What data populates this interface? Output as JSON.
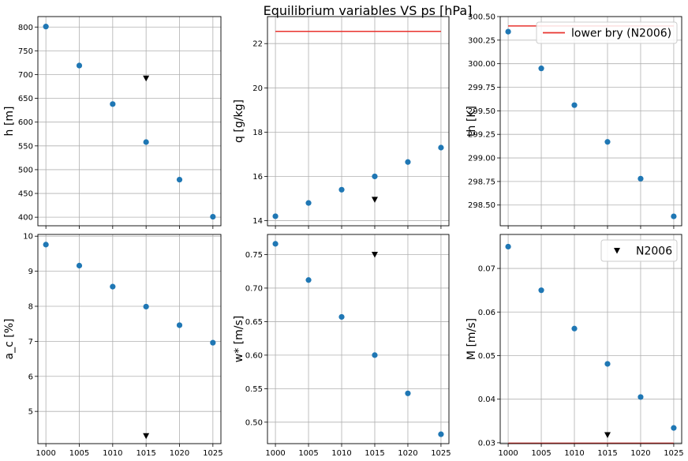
{
  "figure": {
    "title": "Equilibrium variables VS ps [hPa]",
    "colors": {
      "points": "#1f77b4",
      "reference": "#000000",
      "line": "#e8332e",
      "grid": "#b0b0b0"
    }
  },
  "chart_data": [
    {
      "type": "scatter",
      "ylabel": "h [m]",
      "x": [
        1000,
        1005,
        1010,
        1015,
        1020,
        1025
      ],
      "xlim": [
        998.8,
        1026.2
      ],
      "xticks": [
        "",
        "",
        "",
        "",
        "",
        ""
      ],
      "ylim": [
        382,
        822
      ],
      "yticks": [
        "400",
        "450",
        "500",
        "550",
        "600",
        "650",
        "700",
        "750",
        "800"
      ],
      "series": [
        {
          "values": [
            801,
            719,
            638,
            558,
            479,
            401
          ]
        }
      ],
      "reference": {
        "x": 1015,
        "y": 692
      }
    },
    {
      "type": "scatter",
      "ylabel": "q [g/kg]",
      "x": [
        1000,
        1005,
        1010,
        1015,
        1020,
        1025
      ],
      "xlim": [
        998.8,
        1026.2
      ],
      "xticks": [
        "",
        "",
        "",
        "",
        "",
        ""
      ],
      "ylim": [
        13.77,
        23.22
      ],
      "yticks": [
        "14",
        "16",
        "18",
        "20",
        "22"
      ],
      "series": [
        {
          "values": [
            14.2,
            14.8,
            15.4,
            16.0,
            16.65,
            17.3
          ]
        }
      ],
      "reference": {
        "x": 1015,
        "y": 14.95
      },
      "hline": {
        "y": 22.55,
        "x_from": 1000,
        "x_to": 1025
      }
    },
    {
      "type": "scatter",
      "ylabel": "th [K]",
      "x": [
        1000,
        1005,
        1010,
        1015,
        1020,
        1025
      ],
      "xlim": [
        998.8,
        1026.2
      ],
      "xticks": [
        "",
        "",
        "",
        "",
        "",
        ""
      ],
      "ylim": [
        298.28,
        300.5
      ],
      "yticks": [
        "298.50",
        "298.75",
        "299.00",
        "299.25",
        "299.50",
        "299.75",
        "300.00",
        "300.25",
        "300.50"
      ],
      "series": [
        {
          "values": [
            300.34,
            299.95,
            299.56,
            299.17,
            298.78,
            298.38
          ]
        }
      ],
      "hline": {
        "y": 300.4,
        "x_from": 1000,
        "x_to": 1025
      },
      "legend": {
        "label": "lower bry (N2006)",
        "kind": "line",
        "placement": "top-right"
      }
    },
    {
      "type": "scatter",
      "ylabel": "a_c [%]",
      "x": [
        1000,
        1005,
        1010,
        1015,
        1020,
        1025
      ],
      "xlim": [
        998.8,
        1026.2
      ],
      "xticks": [
        "1000",
        "1005",
        "1010",
        "1015",
        "1020",
        "1025"
      ],
      "ylim": [
        4.08,
        10.05
      ],
      "yticks": [
        "5",
        "6",
        "7",
        "8",
        "9",
        "10"
      ],
      "series": [
        {
          "values": [
            9.76,
            9.16,
            8.56,
            7.99,
            7.46,
            6.96
          ]
        }
      ],
      "reference": {
        "x": 1015,
        "y": 4.3
      }
    },
    {
      "type": "scatter",
      "ylabel": "w* [m/s]",
      "x": [
        1000,
        1005,
        1010,
        1015,
        1020,
        1025
      ],
      "xlim": [
        998.8,
        1026.2
      ],
      "xticks": [
        "1000",
        "1005",
        "1010",
        "1015",
        "1020",
        "1025"
      ],
      "ylim": [
        0.468,
        0.78
      ],
      "yticks": [
        "0.50",
        "0.55",
        "0.60",
        "0.65",
        "0.70",
        "0.75"
      ],
      "series": [
        {
          "values": [
            0.766,
            0.712,
            0.657,
            0.6,
            0.543,
            0.482
          ]
        }
      ],
      "reference": {
        "x": 1015,
        "y": 0.75
      }
    },
    {
      "type": "scatter",
      "ylabel": "M [m/s]",
      "x": [
        1000,
        1005,
        1010,
        1015,
        1020,
        1025
      ],
      "xlim": [
        998.8,
        1026.2
      ],
      "xticks": [
        "1000",
        "1005",
        "1010",
        "1015",
        "1020",
        "1025"
      ],
      "ylim": [
        0.0298,
        0.0778
      ],
      "yticks": [
        "0.03",
        "0.04",
        "0.05",
        "0.06",
        "0.07"
      ],
      "series": [
        {
          "values": [
            0.075,
            0.065,
            0.0562,
            0.0481,
            0.0405,
            0.0334
          ]
        }
      ],
      "reference": {
        "x": 1015,
        "y": 0.0318
      },
      "hline": {
        "y": 0.0299,
        "x_from": 1000,
        "x_to": 1025
      },
      "legend": {
        "label": "N2006",
        "kind": "triangle",
        "placement": "top-right"
      }
    }
  ]
}
